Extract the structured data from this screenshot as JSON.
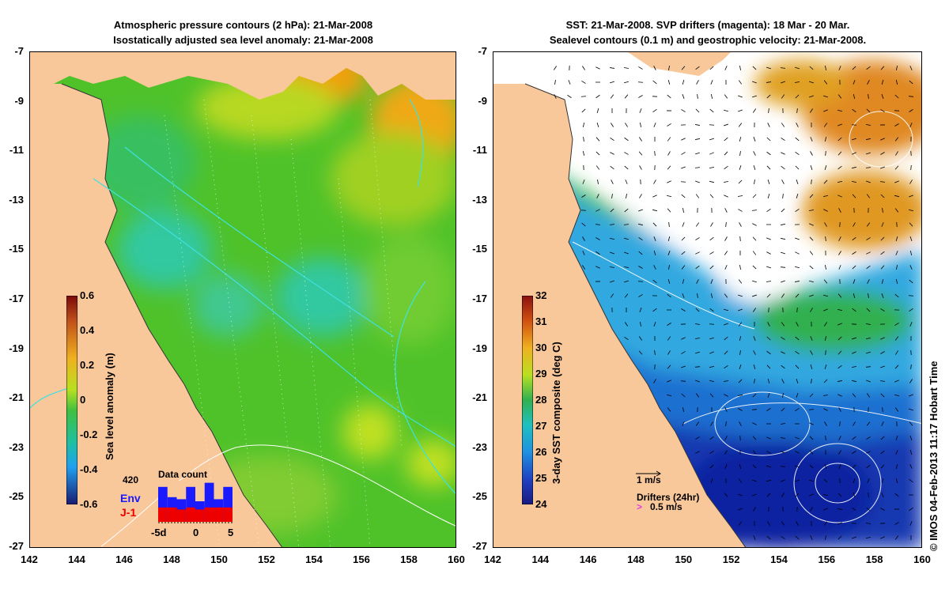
{
  "left_panel": {
    "title_line1": "Atmospheric pressure contours (2 hPa): 21-Mar-2008",
    "title_line2": "Isostatically adjusted sea level anomaly: 21-Mar-2008",
    "colorbar_label": "Sea level anomaly (m)",
    "colorbar_ticks": [
      "0.6",
      "0.4",
      "0.2",
      "0",
      "-0.2",
      "-0.4",
      "-0.6"
    ],
    "inset": {
      "title": "Data count",
      "count_value": "420",
      "legend": [
        {
          "name": "Env",
          "color": "#1a1aff"
        },
        {
          "name": "J-1",
          "color": "#ee0000"
        }
      ],
      "x_ticks": [
        "-5d",
        "0",
        "5"
      ],
      "env_counts": [
        0.85,
        0.6,
        0.55,
        0.85,
        0.5,
        0.95,
        0.55,
        0.85
      ],
      "j1_counts": [
        0.35,
        0.35,
        0.3,
        0.35,
        0.3,
        0.35,
        0.35,
        0.35
      ]
    }
  },
  "right_panel": {
    "title_line1": "SST: 21-Mar-2008. SVP drifters (magenta): 18 Mar - 20 Mar.",
    "title_line2": "Sealevel contours (0.1 m) and geostrophic velocity: 21-Mar-2008.",
    "colorbar_label": "3-day SST composite (deg C)",
    "colorbar_ticks": [
      "32",
      "31",
      "30",
      "29",
      "28",
      "27",
      "26",
      "25",
      "24"
    ],
    "velocity_scale_label": "1 m/s",
    "drifters_label": "Drifters (24hr)",
    "drifter_speed_label": "0.5 m/s",
    "drifter_marker": ">"
  },
  "axes": {
    "y_ticks": [
      "-7",
      "-9",
      "-11",
      "-13",
      "-15",
      "-17",
      "-19",
      "-21",
      "-23",
      "-25",
      "-27"
    ],
    "x_ticks": [
      "142",
      "144",
      "146",
      "148",
      "150",
      "152",
      "154",
      "156",
      "158",
      "160"
    ],
    "lon_range": [
      142,
      160
    ],
    "lat_range": [
      -27,
      -7
    ]
  },
  "credit": "© IMOS 04-Feb-2013 11:17 Hobart Time",
  "colors": {
    "land": "#f8c79a",
    "ssla_base": "#55cc22",
    "sst_cold": "#1030b0",
    "sst_warm": "#e08820",
    "contour_cyan": "#40e0e0"
  }
}
